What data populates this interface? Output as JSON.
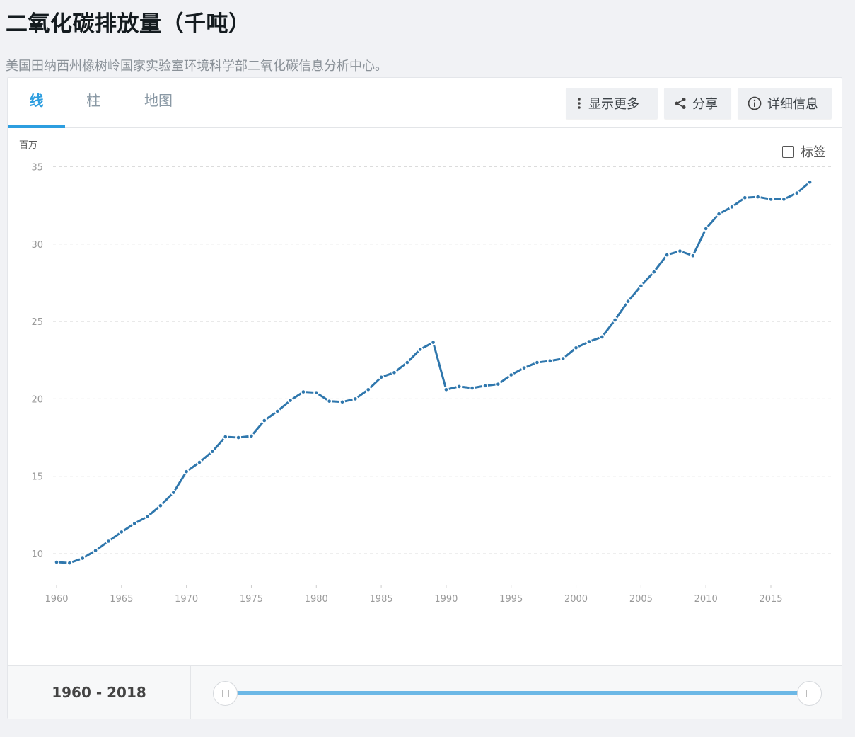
{
  "page": {
    "title": "二氧化碳排放量（千吨）",
    "subtitle": "美国田纳西州橡树岭国家实验室环境科学部二氧化碳信息分析中心。"
  },
  "tabs": [
    {
      "label": "线",
      "active": true
    },
    {
      "label": "柱",
      "active": false
    },
    {
      "label": "地图",
      "active": false
    }
  ],
  "toolbar": {
    "more_label": "显示更多",
    "share_label": "分享",
    "details_label": "详细信息"
  },
  "chart_controls": {
    "unit_label": "百万",
    "labels_toggle": "标签",
    "labels_checked": false
  },
  "range": {
    "label": "1960 - 2018",
    "start": 1960,
    "end": 2018
  },
  "colors": {
    "accent": "#2d9ee0",
    "line": "#2f77ad",
    "slider": "#6cb8e6"
  },
  "chart_data": {
    "type": "line",
    "title": "二氧化碳排放量（千吨）",
    "xlabel": "",
    "ylabel": "百万",
    "ylim": [
      8,
      35
    ],
    "yticks": [
      10,
      15,
      20,
      25,
      30,
      35
    ],
    "xticks": [
      1960,
      1965,
      1970,
      1975,
      1980,
      1985,
      1990,
      1995,
      2000,
      2005,
      2010,
      2015
    ],
    "grid": true,
    "legend": "none",
    "x": [
      1960,
      1961,
      1962,
      1963,
      1964,
      1965,
      1966,
      1967,
      1968,
      1969,
      1970,
      1971,
      1972,
      1973,
      1974,
      1975,
      1976,
      1977,
      1978,
      1979,
      1980,
      1981,
      1982,
      1983,
      1984,
      1985,
      1986,
      1987,
      1988,
      1989,
      1990,
      1991,
      1992,
      1993,
      1994,
      1995,
      1996,
      1997,
      1998,
      1999,
      2000,
      2001,
      2002,
      2003,
      2004,
      2005,
      2006,
      2007,
      2008,
      2009,
      2010,
      2011,
      2012,
      2013,
      2014,
      2015,
      2016,
      2017,
      2018
    ],
    "series": [
      {
        "name": "二氧化碳排放量",
        "values": [
          9.45,
          9.4,
          9.7,
          10.2,
          10.8,
          11.4,
          11.95,
          12.4,
          13.1,
          13.95,
          15.3,
          15.9,
          16.6,
          17.55,
          17.5,
          17.6,
          18.6,
          19.2,
          19.9,
          20.45,
          20.4,
          19.85,
          19.8,
          20.0,
          20.6,
          21.4,
          21.7,
          22.35,
          23.2,
          23.65,
          20.6,
          20.8,
          20.7,
          20.85,
          20.95,
          21.55,
          22.0,
          22.35,
          22.45,
          22.6,
          23.3,
          23.7,
          24.0,
          25.1,
          26.3,
          27.3,
          28.2,
          29.3,
          29.55,
          29.25,
          31.0,
          31.95,
          32.4,
          33.0,
          33.05,
          32.9,
          32.9,
          33.3,
          34.0
        ]
      }
    ]
  }
}
